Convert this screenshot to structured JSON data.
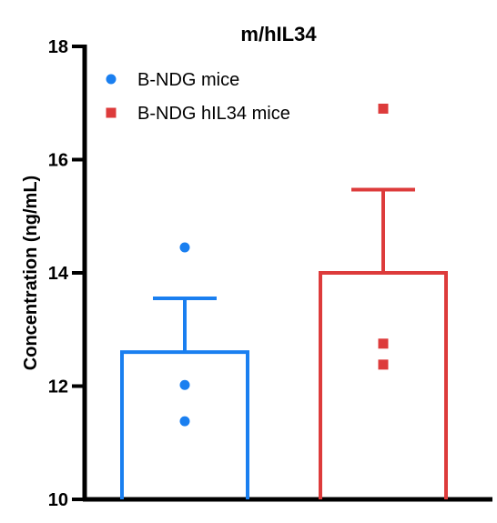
{
  "chart_data": {
    "type": "bar",
    "title": "m/hIL34",
    "xlabel": "",
    "ylabel": "Concentration (ng/mL)",
    "ylim": [
      10,
      18
    ],
    "yticks": [
      10,
      12,
      14,
      16,
      18
    ],
    "legend_position": "top-left",
    "series": [
      {
        "name": "B-NDG mice",
        "color": "#1a7ff0",
        "marker": "circle",
        "mean": 12.6,
        "error_upper": 13.55,
        "points": [
          14.45,
          12.02,
          11.38
        ]
      },
      {
        "name": "B-NDG hIL34 mice",
        "color": "#dd3b3b",
        "marker": "square",
        "mean": 14.0,
        "error_upper": 15.47,
        "points": [
          16.9,
          12.75,
          12.38
        ]
      }
    ]
  }
}
